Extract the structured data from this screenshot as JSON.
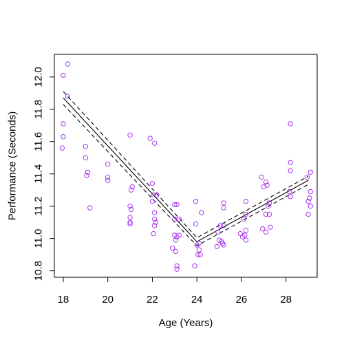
{
  "chart_data": {
    "type": "scatter",
    "xlabel": "Age (Years)",
    "ylabel": "Performance (Seconds)",
    "xlim": [
      17.6,
      29.4
    ],
    "ylim": [
      10.76,
      12.14
    ],
    "x_ticks": [
      18,
      20,
      22,
      24,
      26,
      28
    ],
    "x_tick_labels": [
      "18",
      "20",
      "22",
      "24",
      "26",
      "28"
    ],
    "y_ticks": [
      10.8,
      11.0,
      11.2,
      11.4,
      11.6,
      11.8,
      12.0
    ],
    "y_tick_labels": [
      "10.8",
      "11.0",
      "11.2",
      "11.4",
      "11.6",
      "11.8",
      "12.0"
    ],
    "grid": false,
    "legend": "none",
    "colors": {
      "points": "#a020f0",
      "lines": "#000000",
      "axes": "#000000"
    },
    "points": [
      {
        "x": 18.0,
        "y": 12.01
      },
      {
        "x": 18.2,
        "y": 12.08
      },
      {
        "x": 18.0,
        "y": 11.71
      },
      {
        "x": 18.0,
        "y": 11.63
      },
      {
        "x": 17.95,
        "y": 11.56
      },
      {
        "x": 18.2,
        "y": 11.88
      },
      {
        "x": 19.0,
        "y": 11.57
      },
      {
        "x": 19.0,
        "y": 11.5
      },
      {
        "x": 19.1,
        "y": 11.41
      },
      {
        "x": 19.05,
        "y": 11.39
      },
      {
        "x": 19.2,
        "y": 11.19
      },
      {
        "x": 20.0,
        "y": 11.46
      },
      {
        "x": 20.0,
        "y": 11.38
      },
      {
        "x": 20.0,
        "y": 11.36
      },
      {
        "x": 21.0,
        "y": 11.64
      },
      {
        "x": 21.05,
        "y": 11.3
      },
      {
        "x": 21.1,
        "y": 11.32
      },
      {
        "x": 21.0,
        "y": 11.2
      },
      {
        "x": 21.05,
        "y": 11.18
      },
      {
        "x": 21.0,
        "y": 11.13
      },
      {
        "x": 21.0,
        "y": 11.1
      },
      {
        "x": 21.0,
        "y": 11.09
      },
      {
        "x": 21.9,
        "y": 11.62
      },
      {
        "x": 22.1,
        "y": 11.59
      },
      {
        "x": 22.0,
        "y": 11.34
      },
      {
        "x": 22.05,
        "y": 11.27
      },
      {
        "x": 22.0,
        "y": 11.23
      },
      {
        "x": 22.2,
        "y": 11.27
      },
      {
        "x": 22.1,
        "y": 11.16
      },
      {
        "x": 22.1,
        "y": 11.12
      },
      {
        "x": 22.15,
        "y": 11.1
      },
      {
        "x": 22.1,
        "y": 11.08
      },
      {
        "x": 22.05,
        "y": 11.03
      },
      {
        "x": 23.0,
        "y": 11.21
      },
      {
        "x": 23.1,
        "y": 11.21
      },
      {
        "x": 23.0,
        "y": 11.12
      },
      {
        "x": 23.2,
        "y": 11.12
      },
      {
        "x": 23.0,
        "y": 11.02
      },
      {
        "x": 23.1,
        "y": 11.01
      },
      {
        "x": 23.2,
        "y": 11.02
      },
      {
        "x": 23.05,
        "y": 10.99
      },
      {
        "x": 22.9,
        "y": 10.94
      },
      {
        "x": 23.05,
        "y": 10.92
      },
      {
        "x": 23.1,
        "y": 10.83
      },
      {
        "x": 23.1,
        "y": 10.81
      },
      {
        "x": 23.95,
        "y": 11.23
      },
      {
        "x": 24.2,
        "y": 11.16
      },
      {
        "x": 23.95,
        "y": 11.09
      },
      {
        "x": 24.1,
        "y": 10.97
      },
      {
        "x": 24.0,
        "y": 10.96
      },
      {
        "x": 24.1,
        "y": 10.93
      },
      {
        "x": 24.05,
        "y": 10.9
      },
      {
        "x": 24.15,
        "y": 10.9
      },
      {
        "x": 23.9,
        "y": 10.83
      },
      {
        "x": 25.2,
        "y": 11.22
      },
      {
        "x": 25.2,
        "y": 11.19
      },
      {
        "x": 25.05,
        "y": 11.08
      },
      {
        "x": 25.2,
        "y": 11.08
      },
      {
        "x": 24.95,
        "y": 11.04
      },
      {
        "x": 25.0,
        "y": 10.99
      },
      {
        "x": 25.1,
        "y": 10.98
      },
      {
        "x": 25.15,
        "y": 10.97
      },
      {
        "x": 25.2,
        "y": 10.96
      },
      {
        "x": 24.9,
        "y": 10.95
      },
      {
        "x": 26.2,
        "y": 11.23
      },
      {
        "x": 26.2,
        "y": 11.15
      },
      {
        "x": 26.1,
        "y": 11.12
      },
      {
        "x": 26.2,
        "y": 11.05
      },
      {
        "x": 26.15,
        "y": 11.02
      },
      {
        "x": 25.95,
        "y": 11.03
      },
      {
        "x": 26.05,
        "y": 11.01
      },
      {
        "x": 26.2,
        "y": 10.99
      },
      {
        "x": 26.9,
        "y": 11.38
      },
      {
        "x": 27.1,
        "y": 11.35
      },
      {
        "x": 27.0,
        "y": 11.32
      },
      {
        "x": 27.15,
        "y": 11.33
      },
      {
        "x": 27.25,
        "y": 11.22
      },
      {
        "x": 27.2,
        "y": 11.2
      },
      {
        "x": 27.1,
        "y": 11.15
      },
      {
        "x": 27.25,
        "y": 11.15
      },
      {
        "x": 27.3,
        "y": 11.07
      },
      {
        "x": 26.95,
        "y": 11.06
      },
      {
        "x": 27.1,
        "y": 11.04
      },
      {
        "x": 28.2,
        "y": 11.71
      },
      {
        "x": 28.2,
        "y": 11.47
      },
      {
        "x": 28.2,
        "y": 11.42
      },
      {
        "x": 28.15,
        "y": 11.29
      },
      {
        "x": 28.2,
        "y": 11.26
      },
      {
        "x": 29.1,
        "y": 11.41
      },
      {
        "x": 28.95,
        "y": 11.38
      },
      {
        "x": 29.1,
        "y": 11.29
      },
      {
        "x": 29.05,
        "y": 11.25
      },
      {
        "x": 29.0,
        "y": 11.23
      },
      {
        "x": 29.1,
        "y": 11.2
      },
      {
        "x": 29.0,
        "y": 11.15
      }
    ],
    "fit_line": {
      "x": [
        18,
        24,
        29
      ],
      "y": [
        11.87,
        10.98,
        11.36
      ]
    },
    "upper_band": {
      "x": [
        18,
        24,
        29
      ],
      "y": [
        11.91,
        11.005,
        11.385
      ]
    },
    "lower_band": {
      "x": [
        18,
        24,
        29
      ],
      "y": [
        11.83,
        10.955,
        11.335
      ]
    }
  }
}
